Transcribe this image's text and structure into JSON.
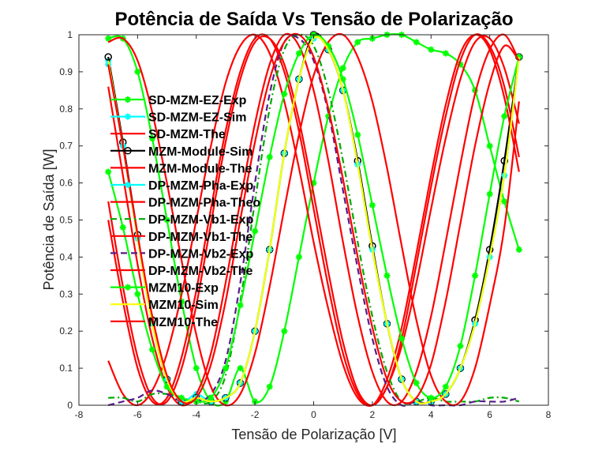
{
  "chart_data": {
    "type": "line",
    "title": "Potência de Saída Vs Tensão de Polarização",
    "xlabel": "Tensão de Polarização [V]",
    "ylabel": "Potência de Saída [W]",
    "xlim": [
      -8,
      8
    ],
    "ylim": [
      0,
      1
    ],
    "xticks": [
      "-8",
      "-6",
      "-4",
      "-2",
      "0",
      "2",
      "4",
      "6",
      "8"
    ],
    "yticks": [
      "0",
      "0.1",
      "0.2",
      "0.3",
      "0.4",
      "0.5",
      "0.6",
      "0.7",
      "0.8",
      "0.9",
      "1"
    ],
    "grid": false,
    "legend_position": "upper-left",
    "series": [
      {
        "name": "SD-MZM-EZ-Exp",
        "color": "#00ff00",
        "style": "solid",
        "marker": "asterisk",
        "x": [
          -7,
          -6.5,
          -6,
          -5.5,
          -5,
          -4.5,
          -4,
          -3.5,
          -3,
          -2.5,
          -2,
          -1.5,
          -1,
          -0.5,
          0,
          0.5,
          1,
          1.5,
          2,
          2.5,
          3,
          3.5,
          4,
          4.5,
          5,
          5.5,
          6,
          6.5,
          7
        ],
        "y": [
          0.99,
          0.99,
          0.9,
          0.72,
          0.5,
          0.28,
          0.1,
          0.01,
          0.01,
          0.1,
          0.01,
          0.05,
          0.2,
          0.4,
          0.6,
          0.78,
          0.91,
          0.98,
          0.99,
          1.0,
          1.0,
          0.98,
          0.96,
          0.95,
          0.92,
          0.85,
          0.7,
          0.55,
          0.42
        ]
      },
      {
        "name": "SD-MZM-EZ-Sim",
        "color": "#00ffff",
        "style": "solid",
        "marker": "asterisk",
        "x": [
          -7,
          -6.5,
          -6,
          -5.5,
          -5,
          -4.5,
          -4,
          -3.5,
          -3,
          -2.5,
          -2,
          -1.5,
          -1,
          -0.5,
          0,
          0.5,
          1,
          1.5,
          2,
          2.5,
          3,
          3.5,
          4,
          4.5,
          5,
          5.5,
          6,
          6.5,
          7
        ],
        "y": [
          0.93,
          0.7,
          0.45,
          0.22,
          0.07,
          0.01,
          0.03,
          0.01,
          0.02,
          0.06,
          0.2,
          0.42,
          0.68,
          0.88,
          0.99,
          0.96,
          0.85,
          0.65,
          0.42,
          0.22,
          0.07,
          0.01,
          0.01,
          0.03,
          0.1,
          0.22,
          0.4,
          0.62,
          0.94
        ]
      },
      {
        "name": "SD-MZM-The",
        "color": "#ff0000",
        "style": "solid",
        "marker": "none",
        "x": [
          -7,
          -6.5,
          -6,
          -5.5,
          -5,
          -4.5,
          -4,
          -3.5,
          -3,
          -2.5,
          -2,
          -1.5,
          -1,
          -0.5,
          0,
          0.5,
          1,
          1.5,
          2,
          2.5,
          3,
          3.5,
          4,
          4.5,
          5,
          5.5,
          6,
          6.5,
          7
        ],
        "y": [
          0.86,
          0.62,
          0.38,
          0.18,
          0.05,
          0.0,
          0.03,
          0.14,
          0.33,
          0.55,
          0.76,
          0.92,
          1.0,
          0.97,
          0.85,
          0.66,
          0.44,
          0.24,
          0.09,
          0.01,
          0.01,
          0.09,
          0.24,
          0.44,
          0.65,
          0.84,
          0.96,
          1.0,
          0.93
        ]
      },
      {
        "name": "MZM-Module-Sim",
        "color": "#000000",
        "style": "solid",
        "marker": "circle",
        "x": [
          -7,
          -6.5,
          -6,
          -5.5,
          -5,
          -4.5,
          -4,
          -3.5,
          -3,
          -2.5,
          -2,
          -1.5,
          -1,
          -0.5,
          0,
          0.5,
          1,
          1.5,
          2,
          2.5,
          3,
          3.5,
          4,
          4.5,
          5,
          5.5,
          6,
          6.5,
          7
        ],
        "y": [
          0.94,
          0.71,
          0.46,
          0.23,
          0.07,
          0.01,
          0.02,
          0.01,
          0.02,
          0.06,
          0.2,
          0.42,
          0.68,
          0.88,
          1.0,
          0.96,
          0.85,
          0.66,
          0.43,
          0.22,
          0.07,
          0.01,
          0.01,
          0.03,
          0.1,
          0.23,
          0.42,
          0.66,
          0.94
        ]
      },
      {
        "name": "MZM-Module-The",
        "color": "#ff0000",
        "style": "solid",
        "marker": "none",
        "x": [
          -7,
          -6.5,
          -6,
          -5.5,
          -5,
          -4.5,
          -4,
          -3.5,
          -3,
          -2.5,
          -2,
          -1.5,
          -1,
          -0.5,
          0,
          0.5,
          1,
          1.5,
          2,
          2.5,
          3,
          3.5,
          4,
          4.5,
          5,
          5.5,
          6,
          6.5,
          7
        ],
        "y": [
          0.12,
          0.03,
          0.0,
          0.04,
          0.14,
          0.3,
          0.5,
          0.7,
          0.87,
          0.97,
          1.0,
          0.95,
          0.82,
          0.64,
          0.44,
          0.26,
          0.11,
          0.02,
          0.0,
          0.05,
          0.16,
          0.33,
          0.53,
          0.72,
          0.88,
          0.98,
          0.99,
          0.91,
          0.76
        ]
      },
      {
        "name": "DP-MZM-Pha-Exp",
        "color": "#00ffff",
        "style": "solid",
        "marker": "asterisk",
        "x": [
          -7,
          -6.5,
          -6,
          -5.5,
          -5,
          -4.5,
          -4,
          -3.5,
          -3,
          -2.5,
          -2,
          -1.5,
          -1,
          -0.5,
          0,
          0.5,
          1,
          1.5,
          2,
          2.5,
          3,
          3.5,
          4,
          4.5,
          5,
          5.5,
          6,
          6.5,
          7
        ],
        "y": [
          0.92,
          0.7,
          0.45,
          0.22,
          0.07,
          0.01,
          0.02,
          0.01,
          0.02,
          0.06,
          0.2,
          0.42,
          0.68,
          0.88,
          0.99,
          0.96,
          0.85,
          0.65,
          0.42,
          0.22,
          0.07,
          0.01,
          0.01,
          0.03,
          0.1,
          0.22,
          0.4,
          0.62,
          0.94
        ]
      },
      {
        "name": "DP-MZM-Pha-Theo",
        "color": "#ff0000",
        "style": "solid",
        "marker": "none",
        "x": [
          -7,
          -6.5,
          -6,
          -5.5,
          -5,
          -4.5,
          -4,
          -3.5,
          -3,
          -2.5,
          -2,
          -1.5,
          -1,
          -0.5,
          0,
          0.5,
          1,
          1.5,
          2,
          2.5,
          3,
          3.5,
          4,
          4.5,
          5,
          5.5,
          6,
          6.5,
          7
        ],
        "y": [
          0.55,
          0.32,
          0.13,
          0.02,
          0.01,
          0.1,
          0.27,
          0.49,
          0.71,
          0.88,
          0.98,
          0.99,
          0.92,
          0.77,
          0.57,
          0.36,
          0.17,
          0.04,
          0.0,
          0.05,
          0.18,
          0.38,
          0.59,
          0.78,
          0.93,
          1.0,
          0.97,
          0.86,
          0.67
        ]
      },
      {
        "name": "DP-MZM-Vb1-Exp",
        "color": "#00aa00",
        "style": "dashdot",
        "marker": "none",
        "x": [
          -7,
          -6.5,
          -6,
          -5.5,
          -5,
          -4.5,
          -4,
          -3.5,
          -3,
          -2.5,
          -2,
          -1.5,
          -1,
          -0.5,
          0,
          0.5,
          1,
          1.5,
          2,
          2.5,
          3,
          3.5,
          4,
          4.5,
          5,
          5.5,
          6,
          6.5,
          7
        ],
        "y": [
          0.02,
          0.02,
          0.01,
          0.03,
          0.03,
          0.02,
          0.01,
          0.01,
          0.08,
          0.28,
          0.55,
          0.8,
          0.96,
          1.0,
          0.97,
          0.85,
          0.66,
          0.44,
          0.24,
          0.09,
          0.01,
          0.01,
          0.02,
          0.01,
          0.01,
          0.01,
          0.02,
          0.02,
          0.01
        ]
      },
      {
        "name": "DP-MZM-Vb1-The",
        "color": "#ff0000",
        "style": "solid",
        "marker": "none",
        "x": [
          -7,
          -6.5,
          -6,
          -5.5,
          -5,
          -4.5,
          -4,
          -3.5,
          -3,
          -2.5,
          -2,
          -1.5,
          -1,
          -0.5,
          0,
          0.5,
          1,
          1.5,
          2,
          2.5,
          3,
          3.5,
          4,
          4.5,
          5,
          5.5,
          6,
          6.5,
          7
        ],
        "y": [
          0.5,
          0.28,
          0.1,
          0.01,
          0.02,
          0.13,
          0.31,
          0.53,
          0.74,
          0.9,
          0.99,
          0.99,
          0.9,
          0.74,
          0.53,
          0.32,
          0.14,
          0.03,
          0.0,
          0.07,
          0.21,
          0.41,
          0.62,
          0.81,
          0.95,
          1.0,
          0.96,
          0.83,
          0.63
        ]
      },
      {
        "name": "DP-MZM-Vb2-Exp",
        "color": "#5a1a8c",
        "style": "dashed",
        "marker": "none",
        "x": [
          -7,
          -6.5,
          -6,
          -5.5,
          -5,
          -4.5,
          -4,
          -3.5,
          -3,
          -2.5,
          -2,
          -1.5,
          -1,
          -0.5,
          0,
          0.5,
          1,
          1.5,
          2,
          2.5,
          3,
          3.5,
          4,
          4.5,
          5,
          5.5,
          6,
          6.5,
          7
        ],
        "y": [
          0.0,
          0.01,
          0.02,
          0.04,
          0.03,
          0.01,
          0.01,
          0.03,
          0.12,
          0.33,
          0.6,
          0.84,
          0.98,
          0.99,
          0.93,
          0.79,
          0.58,
          0.37,
          0.18,
          0.05,
          0.0,
          0.01,
          0.0,
          0.0,
          0.0,
          0.01,
          0.01,
          0.01,
          0.02
        ]
      },
      {
        "name": "DP-MZM-Vb2-The",
        "color": "#ff0000",
        "style": "solid",
        "marker": "none",
        "x": [
          -7,
          -6.5,
          -6,
          -5.5,
          -5,
          -4.5,
          -4,
          -3.5,
          -3,
          -2.5,
          -2,
          -1.5,
          -1,
          -0.5,
          0,
          0.5,
          1,
          1.5,
          2,
          2.5,
          3,
          3.5,
          4,
          4.5,
          5,
          5.5,
          6,
          6.5,
          7
        ],
        "y": [
          0.98,
          0.99,
          0.93,
          0.79,
          0.6,
          0.39,
          0.19,
          0.05,
          0.0,
          0.03,
          0.14,
          0.32,
          0.53,
          0.73,
          0.89,
          0.98,
          1.0,
          0.94,
          0.82,
          0.64,
          0.43,
          0.23,
          0.08,
          0.01,
          0.01,
          0.1,
          0.27,
          0.48,
          0.82
        ]
      },
      {
        "name": "MZM10-Exp",
        "color": "#00ff00",
        "style": "solid",
        "marker": "asterisk",
        "x": [
          -7,
          -6.5,
          -6,
          -5.5,
          -5,
          -4.5,
          -4,
          -3.5,
          -3,
          -2.5,
          -2,
          -1.5,
          -1,
          -0.5,
          0,
          0.5,
          1,
          1.5,
          2,
          2.5,
          3,
          3.5,
          4,
          4.5,
          5,
          5.5,
          6,
          6.5,
          7
        ],
        "y": [
          0.63,
          0.48,
          0.3,
          0.15,
          0.05,
          0.02,
          0.01,
          0.02,
          0.1,
          0.27,
          0.47,
          0.67,
          0.84,
          0.95,
          1.0,
          0.97,
          0.88,
          0.73,
          0.54,
          0.35,
          0.18,
          0.06,
          0.02,
          0.05,
          0.16,
          0.35,
          0.57,
          0.78,
          0.94
        ]
      },
      {
        "name": "MZM10-Sim",
        "color": "#ffff00",
        "style": "solid",
        "marker": "none",
        "x": [
          -7,
          -6.5,
          -6,
          -5.5,
          -5,
          -4.5,
          -4,
          -3.5,
          -3,
          -2.5,
          -2,
          -1.5,
          -1,
          -0.5,
          0,
          0.5,
          1,
          1.5,
          2,
          2.5,
          3,
          3.5,
          4,
          4.5,
          5,
          5.5,
          6,
          6.5,
          7
        ],
        "y": [
          0.93,
          0.7,
          0.45,
          0.22,
          0.07,
          0.01,
          0.02,
          0.01,
          0.02,
          0.06,
          0.2,
          0.42,
          0.68,
          0.88,
          0.99,
          0.96,
          0.85,
          0.65,
          0.42,
          0.22,
          0.07,
          0.01,
          0.01,
          0.03,
          0.1,
          0.22,
          0.4,
          0.62,
          0.94
        ]
      },
      {
        "name": "MZM10-The",
        "color": "#ff0000",
        "style": "solid",
        "marker": "none",
        "x": [
          -7,
          -6.5,
          -6,
          -5.5,
          -5,
          -4.5,
          -4,
          -3.5,
          -3,
          -2.5,
          -2,
          -1.5,
          -1,
          -0.5,
          0,
          0.5,
          1,
          1.5,
          2,
          2.5,
          3,
          3.5,
          4,
          4.5,
          5,
          5.5,
          6,
          6.5,
          7
        ],
        "y": [
          0.92,
          0.7,
          0.46,
          0.24,
          0.08,
          0.01,
          0.02,
          0.11,
          0.28,
          0.5,
          0.71,
          0.88,
          0.98,
          1.0,
          0.94,
          0.8,
          0.61,
          0.4,
          0.21,
          0.07,
          0.01,
          0.02,
          0.11,
          0.28,
          0.49,
          0.7,
          0.87,
          0.97,
          0.93
        ]
      }
    ]
  }
}
